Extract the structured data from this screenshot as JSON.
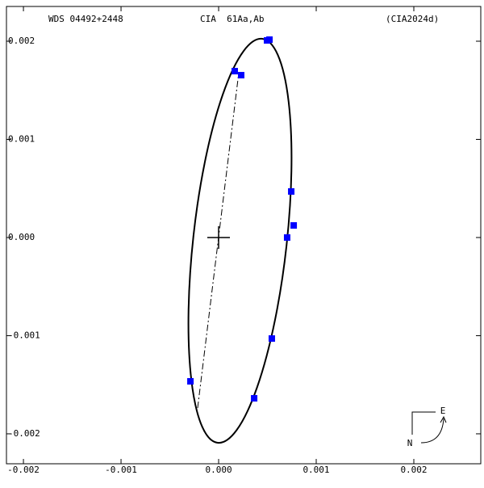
{
  "chart_data": {
    "type": "scatter",
    "header": [
      "WDS 04492+2448",
      "CIA  61Aa,Ab",
      "(CIA2024d)"
    ],
    "x": [
      0.000521,
      0.000496,
      0.000165,
      0.000231,
      0.000744,
      0.000769,
      0.000702,
      0.000545,
      -0.000289,
      0.000364
    ],
    "values": [
      0.002016,
      0.002008,
      0.001695,
      0.001654,
      0.000469,
      0.000123,
      0.0,
      -0.001029,
      -0.001465,
      -0.001638
    ],
    "color": "#0000ff",
    "xlim": [
      -0.002174,
      0.002686
    ],
    "ylim": [
      -0.002305,
      0.002354
    ],
    "xticks": [
      -0.002,
      -0.001,
      {
        "value": 0,
        "label": "0.000"
      },
      0.001,
      0.002
    ],
    "yticks": [
      -0.002,
      -0.001,
      {
        "value": 0,
        "label": "0.000"
      },
      0.001,
      0.002
    ],
    "compass": [
      "E",
      "N"
    ]
  }
}
